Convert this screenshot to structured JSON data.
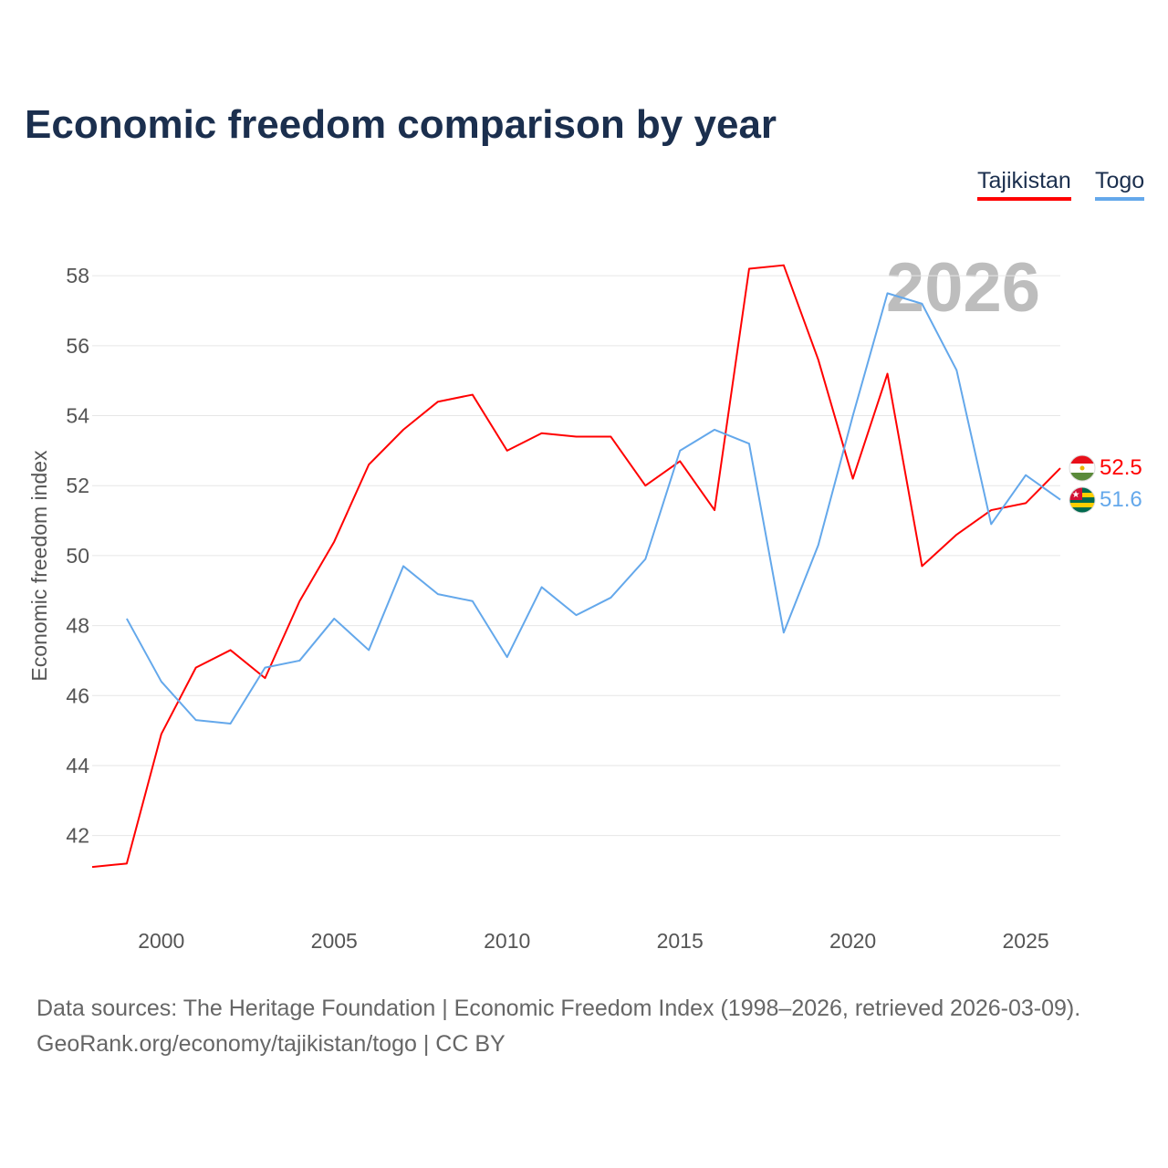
{
  "title": "Economic freedom comparison by year",
  "footer": {
    "line1": "Data sources: The Heritage Foundation | Economic Freedom Index (1998–2026, retrieved 2026-03-09).",
    "line2": "GeoRank.org/economy/tajikistan/togo | CC BY"
  },
  "chart_data": {
    "type": "line",
    "title": "Economic freedom comparison by year",
    "xlabel": "",
    "ylabel": "Economic freedom index",
    "year_watermark": "2026",
    "xlim": [
      1998,
      2026
    ],
    "ylim": [
      39.8,
      60.3
    ],
    "xticks": [
      "2000",
      "2005",
      "2010",
      "2015",
      "2020",
      "2025"
    ],
    "yticks": [
      "42",
      "44",
      "46",
      "48",
      "50",
      "52",
      "54",
      "56",
      "58"
    ],
    "grid": true,
    "legend_position": "top-right",
    "series": [
      {
        "name": "Tajikistan",
        "color": "#ff0000",
        "end_label": "52.5",
        "flag": "tajikistan-flag",
        "x": [
          1998,
          1999,
          2000,
          2001,
          2002,
          2003,
          2004,
          2005,
          2006,
          2007,
          2008,
          2009,
          2010,
          2011,
          2012,
          2013,
          2014,
          2015,
          2016,
          2017,
          2018,
          2019,
          2020,
          2021,
          2022,
          2023,
          2024,
          2025,
          2026
        ],
        "values": [
          41.1,
          41.2,
          44.9,
          46.8,
          47.3,
          46.5,
          48.7,
          50.4,
          52.6,
          53.6,
          54.4,
          54.6,
          53.0,
          53.5,
          53.4,
          53.4,
          52.0,
          52.7,
          51.3,
          58.2,
          58.3,
          55.6,
          52.2,
          55.2,
          49.7,
          50.6,
          51.3,
          51.5,
          52.5
        ]
      },
      {
        "name": "Togo",
        "color": "#64a8eb",
        "end_label": "51.6",
        "flag": "togo-flag",
        "x": [
          1999,
          2000,
          2001,
          2002,
          2003,
          2004,
          2005,
          2006,
          2007,
          2008,
          2009,
          2010,
          2011,
          2012,
          2013,
          2014,
          2015,
          2016,
          2017,
          2018,
          2019,
          2020,
          2021,
          2022,
          2023,
          2024,
          2025,
          2026
        ],
        "values": [
          48.2,
          46.4,
          45.3,
          45.2,
          46.8,
          47.0,
          48.2,
          47.3,
          49.7,
          48.9,
          48.7,
          47.1,
          49.1,
          48.3,
          48.8,
          49.9,
          53.0,
          53.6,
          53.2,
          47.8,
          50.3,
          54.0,
          57.5,
          57.2,
          55.3,
          50.9,
          52.3,
          51.6
        ]
      }
    ]
  }
}
